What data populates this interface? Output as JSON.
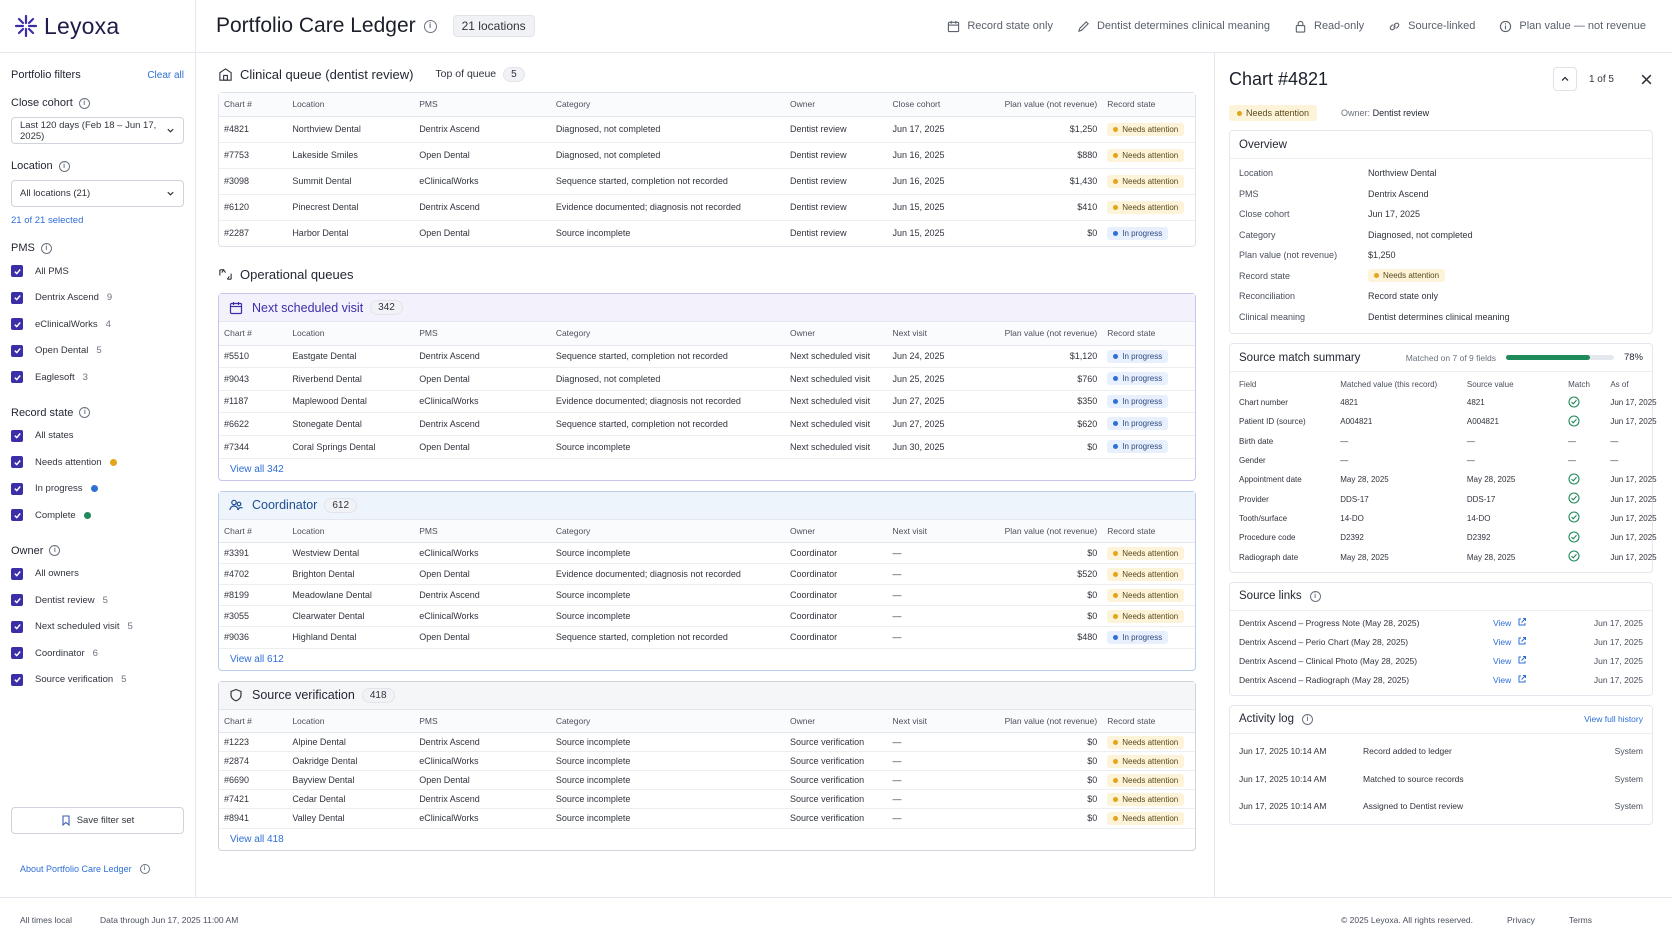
{
  "app": {
    "name": "Leyoxa"
  },
  "header": {
    "title": "Portfolio Care Ledger",
    "locations_chip": "21 locations",
    "flags": [
      "Record state only",
      "Dentist determines clinical meaning",
      "Read-only",
      "Source-linked",
      "Plan value — not revenue"
    ]
  },
  "sidebar": {
    "title": "Portfolio filters",
    "clear_all": "Clear all",
    "close_cohort_label": "Close cohort",
    "close_cohort_value": "Last 120 days (Feb 18 – Jun 17, 2025)",
    "location_label": "Location",
    "location_value": "All locations (21)",
    "location_selected": "21 of 21 selected",
    "pms_label": "PMS",
    "pms_items": [
      {
        "label": "All PMS",
        "count": ""
      },
      {
        "label": "Dentrix Ascend",
        "count": "9"
      },
      {
        "label": "eClinicalWorks",
        "count": "4"
      },
      {
        "label": "Open Dental",
        "count": "5"
      },
      {
        "label": "Eaglesoft",
        "count": "3"
      }
    ],
    "record_state_label": "Record state",
    "record_state_items": [
      {
        "label": "All states",
        "color": ""
      },
      {
        "label": "Needs attention",
        "color": "#e3a51a"
      },
      {
        "label": "In progress",
        "color": "#2f6fd6"
      },
      {
        "label": "Complete",
        "color": "#1f8a5a"
      }
    ],
    "owner_label": "Owner",
    "owner_items": [
      {
        "label": "All owners",
        "count": ""
      },
      {
        "label": "Dentist review",
        "count": "5"
      },
      {
        "label": "Next scheduled visit",
        "count": "5"
      },
      {
        "label": "Coordinator",
        "count": "6"
      },
      {
        "label": "Source verification",
        "count": "5"
      }
    ],
    "save_label": "Save filter set",
    "about_label": "About Portfolio Care Ledger"
  },
  "clinical": {
    "title": "Clinical queue (dentist review)",
    "sub": "Top of queue",
    "count": "5",
    "headers": [
      "Chart #",
      "Location",
      "PMS",
      "Category",
      "Owner",
      "Close cohort",
      "Plan value (not revenue)",
      "Record state"
    ],
    "rows": [
      [
        "#4821",
        "Northview Dental",
        "Dentrix Ascend",
        "Diagnosed, not completed",
        "Dentist review",
        "Jun 17, 2025",
        "$1,250",
        "Needs attention"
      ],
      [
        "#7753",
        "Lakeside Smiles",
        "Open Dental",
        "Diagnosed, not completed",
        "Dentist review",
        "Jun 16, 2025",
        "$880",
        "Needs attention"
      ],
      [
        "#3098",
        "Summit Dental",
        "eClinicalWorks",
        "Sequence started, completion not recorded",
        "Dentist review",
        "Jun 16, 2025",
        "$1,430",
        "Needs attention"
      ],
      [
        "#6120",
        "Pinecrest Dental",
        "Dentrix Ascend",
        "Evidence documented; diagnosis not recorded",
        "Dentist review",
        "Jun 15, 2025",
        "$410",
        "Needs attention"
      ],
      [
        "#2287",
        "Harbor Dental",
        "Open Dental",
        "Source incomplete",
        "Dentist review",
        "Jun 15, 2025",
        "$0",
        "In progress"
      ]
    ]
  },
  "operational": {
    "title": "Operational queues",
    "queues": [
      {
        "title": "Next scheduled visit",
        "count": "342",
        "view_all": "View all 342",
        "headers": [
          "Chart #",
          "Location",
          "PMS",
          "Category",
          "Owner",
          "Next visit",
          "Plan value (not revenue)",
          "Record state"
        ],
        "rows": [
          [
            "#5510",
            "Eastgate Dental",
            "Dentrix Ascend",
            "Sequence started, completion not recorded",
            "Next scheduled visit",
            "Jun 24, 2025",
            "$1,120",
            "In progress"
          ],
          [
            "#9043",
            "Riverbend Dental",
            "Open Dental",
            "Diagnosed, not completed",
            "Next scheduled visit",
            "Jun 25, 2025",
            "$760",
            "In progress"
          ],
          [
            "#1187",
            "Maplewood Dental",
            "eClinicalWorks",
            "Evidence documented; diagnosis not recorded",
            "Next scheduled visit",
            "Jun 27, 2025",
            "$350",
            "In progress"
          ],
          [
            "#6622",
            "Stonegate Dental",
            "Dentrix Ascend",
            "Sequence started, completion not recorded",
            "Next scheduled visit",
            "Jun 27, 2025",
            "$620",
            "In progress"
          ],
          [
            "#7344",
            "Coral Springs Dental",
            "Open Dental",
            "Source incomplete",
            "Next scheduled visit",
            "Jun 30, 2025",
            "$0",
            "In progress"
          ]
        ]
      },
      {
        "title": "Coordinator",
        "count": "612",
        "view_all": "View all 612",
        "headers": [
          "Chart #",
          "Location",
          "PMS",
          "Category",
          "Owner",
          "Next visit",
          "Plan value (not revenue)",
          "Record state"
        ],
        "rows": [
          [
            "#3391",
            "Westview Dental",
            "eClinicalWorks",
            "Source incomplete",
            "Coordinator",
            "—",
            "$0",
            "Needs attention"
          ],
          [
            "#4702",
            "Brighton Dental",
            "Open Dental",
            "Evidence documented; diagnosis not recorded",
            "Coordinator",
            "—",
            "$520",
            "Needs attention"
          ],
          [
            "#8199",
            "Meadowlane Dental",
            "Dentrix Ascend",
            "Source incomplete",
            "Coordinator",
            "—",
            "$0",
            "Needs attention"
          ],
          [
            "#3055",
            "Clearwater Dental",
            "eClinicalWorks",
            "Source incomplete",
            "Coordinator",
            "—",
            "$0",
            "Needs attention"
          ],
          [
            "#9036",
            "Highland Dental",
            "Open Dental",
            "Sequence started, completion not recorded",
            "Coordinator",
            "—",
            "$480",
            "In progress"
          ]
        ]
      },
      {
        "title": "Source verification",
        "count": "418",
        "view_all": "View all 418",
        "headers": [
          "Chart #",
          "Location",
          "PMS",
          "Category",
          "Owner",
          "Next visit",
          "Plan value (not revenue)",
          "Record state"
        ],
        "rows": [
          [
            "#1223",
            "Alpine Dental",
            "Dentrix Ascend",
            "Source incomplete",
            "Source verification",
            "—",
            "$0",
            "Needs attention"
          ],
          [
            "#2874",
            "Oakridge Dental",
            "eClinicalWorks",
            "Source incomplete",
            "Source verification",
            "—",
            "$0",
            "Needs attention"
          ],
          [
            "#6690",
            "Bayview Dental",
            "Open Dental",
            "Source incomplete",
            "Source verification",
            "—",
            "$0",
            "Needs attention"
          ],
          [
            "#7421",
            "Cedar Dental",
            "Dentrix Ascend",
            "Source incomplete",
            "Source verification",
            "—",
            "$0",
            "Needs attention"
          ],
          [
            "#8941",
            "Valley Dental",
            "eClinicalWorks",
            "Source incomplete",
            "Source verification",
            "—",
            "$0",
            "Needs attention"
          ]
        ]
      }
    ]
  },
  "detail": {
    "title": "Chart #4821",
    "pager": "1 of 5",
    "state": "Needs attention",
    "owner_label": "Owner:",
    "owner_value": "Dentist review",
    "overview_title": "Overview",
    "overview": [
      {
        "k": "Location",
        "v": "Northview Dental"
      },
      {
        "k": "PMS",
        "v": "Dentrix Ascend"
      },
      {
        "k": "Close cohort",
        "v": "Jun 17, 2025"
      },
      {
        "k": "Category",
        "v": "Diagnosed, not completed"
      },
      {
        "k": "Plan value (not revenue)",
        "v": "$1,250"
      },
      {
        "k": "Record state",
        "v": "Needs attention"
      },
      {
        "k": "Reconciliation",
        "v": "Record state only"
      },
      {
        "k": "Clinical meaning",
        "v": "Dentist determines clinical meaning"
      }
    ],
    "match_title": "Source match summary",
    "match_sub": "Matched on 7 of 9 fields",
    "match_pct": "78%",
    "match_fraction": 0.78,
    "match_headers": [
      "Field",
      "Matched value (this record)",
      "Source value",
      "Match",
      "As of"
    ],
    "match_rows": [
      [
        "Chart number",
        "4821",
        "4821",
        "check",
        "Jun 17, 2025"
      ],
      [
        "Patient ID (source)",
        "A004821",
        "A004821",
        "check",
        "Jun 17, 2025"
      ],
      [
        "Birth date",
        "—",
        "—",
        "—",
        "—"
      ],
      [
        "Gender",
        "—",
        "—",
        "—",
        "—"
      ],
      [
        "Appointment date",
        "May 28, 2025",
        "May 28, 2025",
        "check",
        "Jun 17, 2025"
      ],
      [
        "Provider",
        "DDS-17",
        "DDS-17",
        "check",
        "Jun 17, 2025"
      ],
      [
        "Tooth/surface",
        "14-DO",
        "14-DO",
        "check",
        "Jun 17, 2025"
      ],
      [
        "Procedure code",
        "D2392",
        "D2392",
        "check",
        "Jun 17, 2025"
      ],
      [
        "Radiograph date",
        "May 28, 2025",
        "May 28, 2025",
        "check",
        "Jun 17, 2025"
      ]
    ],
    "links_title": "Source links",
    "links": [
      {
        "name": "Dentrix Ascend – Progress Note (May 28, 2025)",
        "view": "View",
        "date": "Jun 17, 2025"
      },
      {
        "name": "Dentrix Ascend – Perio Chart (May 28, 2025)",
        "view": "View",
        "date": "Jun 17, 2025"
      },
      {
        "name": "Dentrix Ascend – Clinical Photo (May 28, 2025)",
        "view": "View",
        "date": "Jun 17, 2025"
      },
      {
        "name": "Dentrix Ascend – Radiograph (May 28, 2025)",
        "view": "View",
        "date": "Jun 17, 2025"
      }
    ],
    "activity_title": "Activity log",
    "activity_link": "View full history",
    "activity": [
      {
        "time": "Jun 17, 2025 10:14 AM",
        "event": "Record added to ledger",
        "by": "System"
      },
      {
        "time": "Jun 17, 2025 10:14 AM",
        "event": "Matched to source records",
        "by": "System"
      },
      {
        "time": "Jun 17, 2025 10:14 AM",
        "event": "Assigned to Dentist review",
        "by": "System"
      }
    ]
  },
  "footer": {
    "times": "All times local",
    "data_through": "Data through Jun 17, 2025 11:00 AM",
    "copyright": "© 2025 Leyoxa. All rights reserved.",
    "privacy": "Privacy",
    "terms": "Terms"
  }
}
